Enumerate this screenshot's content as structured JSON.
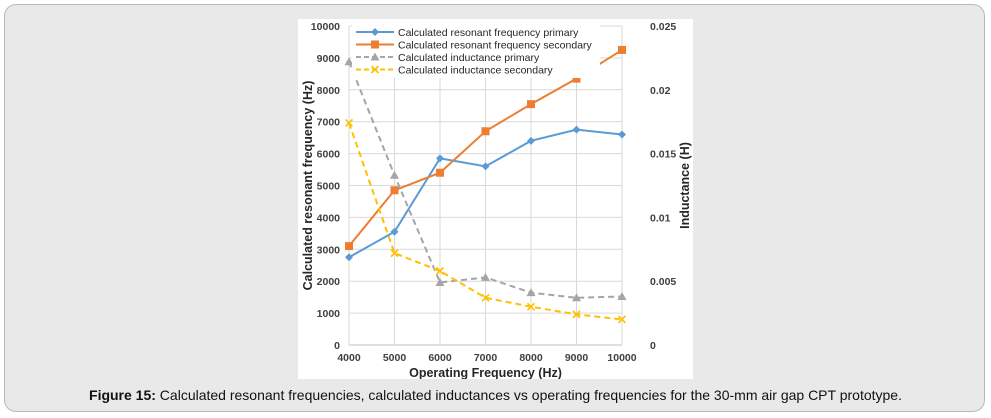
{
  "colors": {
    "res_primary": "#5b9bd5",
    "res_secondary": "#ed7d31",
    "ind_primary": "#a5a5a5",
    "ind_secondary": "#ffc000",
    "grid": "#d9d9d9",
    "text": "#404040"
  },
  "chart_data": {
    "type": "line",
    "title": "",
    "xlabel": "Operating Frequency (Hz)",
    "ylabel": "Calculated resonant frequency (Hz)",
    "y2label": "Inductance (H)",
    "x": [
      4000,
      5000,
      6000,
      7000,
      8000,
      9000,
      10000
    ],
    "x_ticks": [
      "4000",
      "5000",
      "6000",
      "7000",
      "8000",
      "9000",
      "10000"
    ],
    "ylim": [
      0,
      10000
    ],
    "y_ticks": [
      "0",
      "1000",
      "2000",
      "3000",
      "4000",
      "5000",
      "6000",
      "7000",
      "8000",
      "9000",
      "10000"
    ],
    "y2lim": [
      0,
      0.025
    ],
    "y2_ticks": [
      "0",
      "0.005",
      "0.01",
      "0.015",
      "0.02",
      "0.025"
    ],
    "grid": true,
    "legend_position": "top-left",
    "series": [
      {
        "name": "Calculated resonant frequency primary",
        "axis": "left",
        "marker": "diamond",
        "dash": "solid",
        "color": "#5b9bd5",
        "values": [
          2750,
          3550,
          5850,
          5600,
          6400,
          6750,
          6600
        ]
      },
      {
        "name": "Calculated resonant frequency secondary",
        "axis": "left",
        "marker": "square",
        "dash": "solid",
        "color": "#ed7d31",
        "values": [
          3100,
          4850,
          5400,
          6700,
          7550,
          8350,
          9250
        ]
      },
      {
        "name": "Calculated inductance primary",
        "axis": "right",
        "marker": "triangle",
        "dash": "dashed",
        "color": "#a5a5a5",
        "values": [
          0.0222,
          0.0133,
          0.0049,
          0.0053,
          0.0041,
          0.0037,
          0.0038
        ]
      },
      {
        "name": "Calculated inductance secondary",
        "axis": "right",
        "marker": "x",
        "dash": "dashed",
        "color": "#ffc000",
        "values": [
          0.0174,
          0.0072,
          0.0058,
          0.0037,
          0.003,
          0.0024,
          0.002
        ]
      }
    ]
  },
  "caption": {
    "label": "Figure 15:",
    "text": " Calculated resonant frequencies, calculated inductances vs operating frequencies for the 30-mm air gap CPT prototype."
  }
}
